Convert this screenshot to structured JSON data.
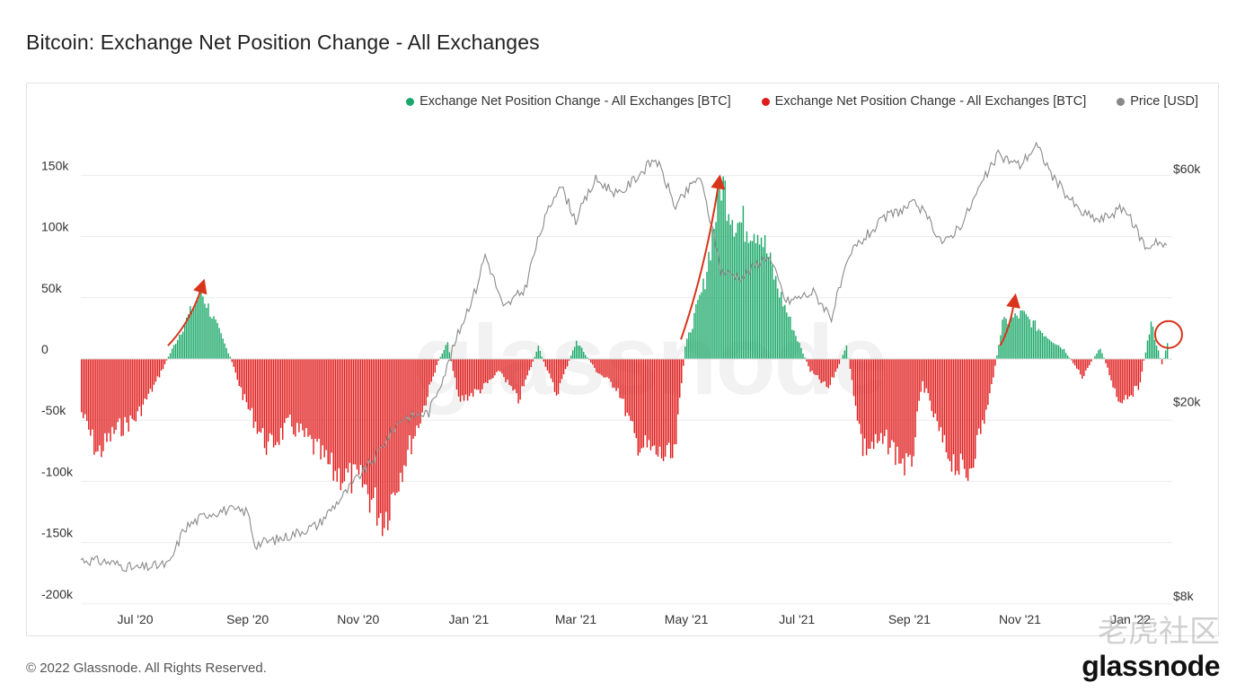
{
  "page": {
    "title": "Bitcoin: Exchange Net Position Change - All Exchanges",
    "copyright": "© 2022 Glassnode. All Rights Reserved.",
    "brand": "glassnode",
    "watermark": "glassnode",
    "cn_watermark": "老虎社区"
  },
  "legend": [
    {
      "label": "Exchange Net Position Change - All Exchanges [BTC]",
      "color": "#1aa868"
    },
    {
      "label": "Exchange Net Position Change - All Exchanges [BTC]",
      "color": "#e01b1b"
    },
    {
      "label": "Price [USD]",
      "color": "#888888"
    }
  ],
  "chart_data": {
    "type": "bar",
    "title": "Bitcoin: Exchange Net Position Change - All Exchanges",
    "x_labels": [
      "Jul '20",
      "Sep '20",
      "Nov '20",
      "Jan '21",
      "Mar '21",
      "May '21",
      "Jul '21",
      "Sep '21",
      "Nov '21",
      "Jan '22"
    ],
    "y_left_ticks": [
      "150k",
      "100k",
      "50k",
      "0",
      "-50k",
      "-100k",
      "-150k",
      "-200k"
    ],
    "y_left_range": [
      -200000,
      150000
    ],
    "y_right_ticks": [
      "$60k",
      "$20k",
      "$8k"
    ],
    "y_right_scale": "log",
    "grid": true,
    "legend_position": "top-right",
    "colors": {
      "positive": "#1aa868",
      "negative": "#e01b1b",
      "price": "#8a8a8a",
      "annotation": "#d9341c"
    },
    "net_position_keyframes": [
      {
        "date": "2020-06-01",
        "value": -45000
      },
      {
        "date": "2020-06-10",
        "value": -80000
      },
      {
        "date": "2020-06-20",
        "value": -60000
      },
      {
        "date": "2020-07-01",
        "value": -50000
      },
      {
        "date": "2020-07-12",
        "value": -20000
      },
      {
        "date": "2020-07-20",
        "value": 5000
      },
      {
        "date": "2020-07-28",
        "value": 30000
      },
      {
        "date": "2020-08-06",
        "value": 57000
      },
      {
        "date": "2020-08-14",
        "value": 30000
      },
      {
        "date": "2020-08-22",
        "value": 2000
      },
      {
        "date": "2020-08-30",
        "value": -35000
      },
      {
        "date": "2020-09-12",
        "value": -75000
      },
      {
        "date": "2020-09-24",
        "value": -55000
      },
      {
        "date": "2020-10-05",
        "value": -70000
      },
      {
        "date": "2020-10-18",
        "value": -95000
      },
      {
        "date": "2020-11-03",
        "value": -105000
      },
      {
        "date": "2020-11-15",
        "value": -135000
      },
      {
        "date": "2020-11-25",
        "value": -90000
      },
      {
        "date": "2020-12-05",
        "value": -50000
      },
      {
        "date": "2020-12-14",
        "value": -5000
      },
      {
        "date": "2020-12-20",
        "value": 15000
      },
      {
        "date": "2020-12-26",
        "value": -35000
      },
      {
        "date": "2021-01-08",
        "value": -25000
      },
      {
        "date": "2021-01-18",
        "value": -10000
      },
      {
        "date": "2021-01-28",
        "value": -35000
      },
      {
        "date": "2021-02-08",
        "value": 10000
      },
      {
        "date": "2021-02-18",
        "value": -30000
      },
      {
        "date": "2021-03-01",
        "value": 15000
      },
      {
        "date": "2021-03-12",
        "value": -10000
      },
      {
        "date": "2021-03-24",
        "value": -25000
      },
      {
        "date": "2021-04-03",
        "value": -70000
      },
      {
        "date": "2021-04-14",
        "value": -80000
      },
      {
        "date": "2021-04-24",
        "value": -85000
      },
      {
        "date": "2021-04-30",
        "value": 10000
      },
      {
        "date": "2021-05-10",
        "value": 60000
      },
      {
        "date": "2021-05-20",
        "value": 150000
      },
      {
        "date": "2021-05-28",
        "value": 115000
      },
      {
        "date": "2021-06-10",
        "value": 110000
      },
      {
        "date": "2021-06-20",
        "value": 60000
      },
      {
        "date": "2021-06-30",
        "value": 20000
      },
      {
        "date": "2021-07-08",
        "value": -10000
      },
      {
        "date": "2021-07-18",
        "value": -25000
      },
      {
        "date": "2021-07-28",
        "value": 10000
      },
      {
        "date": "2021-08-06",
        "value": -75000
      },
      {
        "date": "2021-08-20",
        "value": -70000
      },
      {
        "date": "2021-09-01",
        "value": -95000
      },
      {
        "date": "2021-09-08",
        "value": -20000
      },
      {
        "date": "2021-09-20",
        "value": -75000
      },
      {
        "date": "2021-10-02",
        "value": -100000
      },
      {
        "date": "2021-10-14",
        "value": -40000
      },
      {
        "date": "2021-10-22",
        "value": 30000
      },
      {
        "date": "2021-11-02",
        "value": 38000
      },
      {
        "date": "2021-11-15",
        "value": 20000
      },
      {
        "date": "2021-11-25",
        "value": 8000
      },
      {
        "date": "2021-12-05",
        "value": -15000
      },
      {
        "date": "2021-12-15",
        "value": 10000
      },
      {
        "date": "2021-12-25",
        "value": -35000
      },
      {
        "date": "2022-01-05",
        "value": -25000
      },
      {
        "date": "2022-01-12",
        "value": 30000
      },
      {
        "date": "2022-01-18",
        "value": -5000
      },
      {
        "date": "2022-01-22",
        "value": 18000
      }
    ],
    "price_keyframes": [
      {
        "date": "2020-06-01",
        "price": 9500
      },
      {
        "date": "2020-06-15",
        "price": 9400
      },
      {
        "date": "2020-07-01",
        "price": 9100
      },
      {
        "date": "2020-07-20",
        "price": 9300
      },
      {
        "date": "2020-07-28",
        "price": 11000
      },
      {
        "date": "2020-08-10",
        "price": 11800
      },
      {
        "date": "2020-08-20",
        "price": 12000
      },
      {
        "date": "2020-09-01",
        "price": 11900
      },
      {
        "date": "2020-09-05",
        "price": 10200
      },
      {
        "date": "2020-09-20",
        "price": 10500
      },
      {
        "date": "2020-10-10",
        "price": 11200
      },
      {
        "date": "2020-10-25",
        "price": 13000
      },
      {
        "date": "2020-11-10",
        "price": 15300
      },
      {
        "date": "2020-11-25",
        "price": 18500
      },
      {
        "date": "2020-12-10",
        "price": 19000
      },
      {
        "date": "2020-12-20",
        "price": 23500
      },
      {
        "date": "2021-01-05",
        "price": 34000
      },
      {
        "date": "2021-01-10",
        "price": 40000
      },
      {
        "date": "2021-01-20",
        "price": 31000
      },
      {
        "date": "2021-02-01",
        "price": 34000
      },
      {
        "date": "2021-02-10",
        "price": 45000
      },
      {
        "date": "2021-02-20",
        "price": 56000
      },
      {
        "date": "2021-03-01",
        "price": 47000
      },
      {
        "date": "2021-03-12",
        "price": 57000
      },
      {
        "date": "2021-03-25",
        "price": 53000
      },
      {
        "date": "2021-04-14",
        "price": 63000
      },
      {
        "date": "2021-04-25",
        "price": 50000
      },
      {
        "date": "2021-05-08",
        "price": 58000
      },
      {
        "date": "2021-05-20",
        "price": 37000
      },
      {
        "date": "2021-06-01",
        "price": 36000
      },
      {
        "date": "2021-06-15",
        "price": 40000
      },
      {
        "date": "2021-06-25",
        "price": 32000
      },
      {
        "date": "2021-07-10",
        "price": 33500
      },
      {
        "date": "2021-07-20",
        "price": 29800
      },
      {
        "date": "2021-08-01",
        "price": 41000
      },
      {
        "date": "2021-08-20",
        "price": 48000
      },
      {
        "date": "2021-09-05",
        "price": 51000
      },
      {
        "date": "2021-09-20",
        "price": 42000
      },
      {
        "date": "2021-10-01",
        "price": 47000
      },
      {
        "date": "2021-10-20",
        "price": 64000
      },
      {
        "date": "2021-11-01",
        "price": 61000
      },
      {
        "date": "2021-11-10",
        "price": 67000
      },
      {
        "date": "2021-11-20",
        "price": 57000
      },
      {
        "date": "2021-12-04",
        "price": 49000
      },
      {
        "date": "2021-12-15",
        "price": 47000
      },
      {
        "date": "2021-12-28",
        "price": 50000
      },
      {
        "date": "2022-01-10",
        "price": 41000
      },
      {
        "date": "2022-01-15",
        "price": 43000
      },
      {
        "date": "2022-01-20",
        "price": 41500
      }
    ],
    "annotations": [
      {
        "type": "arrow",
        "from_date": "2020-07-19",
        "to_date": "2020-08-07",
        "from_value": 5000,
        "to_value": 57000
      },
      {
        "type": "arrow",
        "from_date": "2021-04-28",
        "to_date": "2021-05-19",
        "from_value": 10000,
        "to_value": 142000
      },
      {
        "type": "arrow",
        "from_date": "2021-10-21",
        "to_date": "2021-10-29",
        "from_value": 5000,
        "to_value": 45000
      },
      {
        "type": "circle",
        "date": "2022-01-21",
        "value": 20000
      }
    ]
  }
}
